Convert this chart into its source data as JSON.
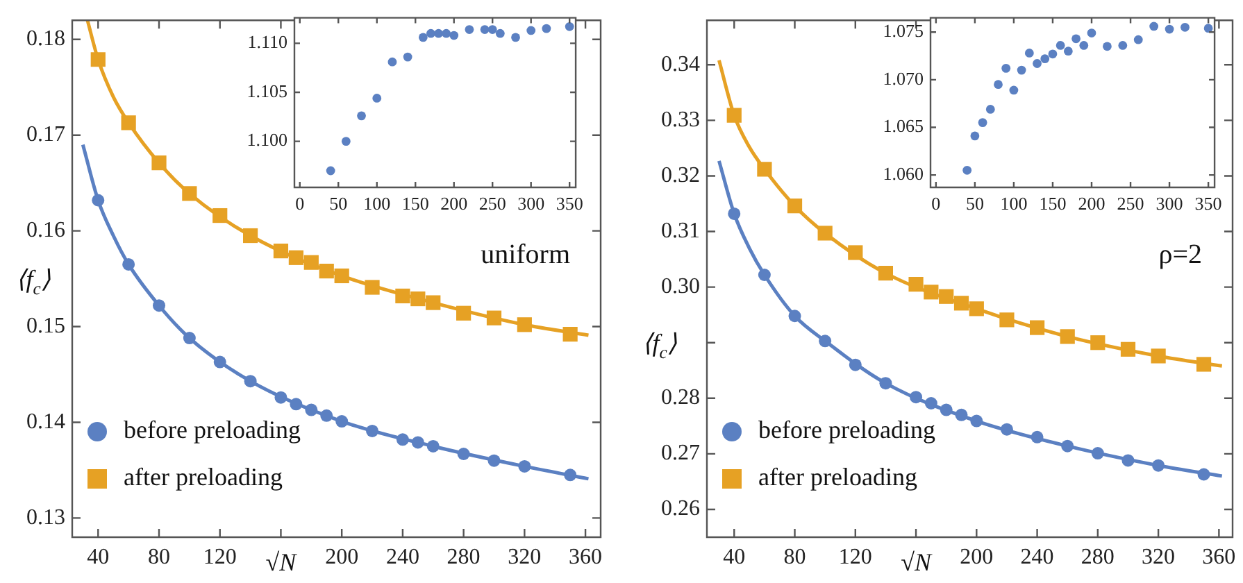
{
  "chart_data": [
    {
      "type": "scatter",
      "xlabel": "√N",
      "ylabel": "⟨f$_{c}$⟩",
      "annotations": [
        "uniform"
      ],
      "legend": "bottom left",
      "xlim": [
        23,
        370
      ],
      "ylim": [
        0.128,
        0.182
      ],
      "xticks": [
        40,
        80,
        120,
        {
          "value": 160,
          "label": null
        },
        200,
        240,
        280,
        320,
        360
      ],
      "yticks": [
        0.13,
        0.14,
        0.15,
        0.16,
        0.17,
        0.18
      ],
      "x": [
        40,
        60,
        80,
        100,
        120,
        140,
        160,
        170,
        180,
        190,
        200,
        220,
        240,
        250,
        260,
        280,
        300,
        320,
        350
      ],
      "series": [
        {
          "type": "line",
          "color": "#5b80c2",
          "x": [
            30,
            40,
            50,
            60,
            80,
            100,
            140,
            200,
            260,
            320,
            362
          ],
          "values": [
            0.169,
            0.1632,
            0.1595,
            0.1565,
            0.1522,
            0.1488,
            0.1443,
            0.1401,
            0.1375,
            0.1354,
            0.1341
          ]
        },
        {
          "type": "line",
          "color": "#e6a124",
          "x": [
            33,
            40,
            50,
            60,
            80,
            100,
            140,
            200,
            260,
            320,
            362
          ],
          "values": [
            0.182,
            0.1779,
            0.174,
            0.1713,
            0.1671,
            0.1639,
            0.1595,
            0.1553,
            0.1525,
            0.1502,
            0.1491
          ]
        },
        {
          "name": "before preloading",
          "type": "scatter",
          "marker": "circle",
          "color": "#5b80c2",
          "values": [
            0.1632,
            0.1565,
            0.1522,
            0.1488,
            0.1463,
            0.1443,
            0.1426,
            0.1419,
            0.1413,
            0.1407,
            0.1401,
            0.1391,
            0.1382,
            0.1379,
            0.1375,
            0.1367,
            0.136,
            0.1354,
            0.1345
          ]
        },
        {
          "name": "after preloading",
          "type": "scatter",
          "marker": "square",
          "color": "#e6a124",
          "values": [
            0.1779,
            0.1713,
            0.1671,
            0.1639,
            0.1616,
            0.1595,
            0.1579,
            0.1572,
            0.1567,
            0.1558,
            0.1553,
            0.1541,
            0.1532,
            0.1529,
            0.1525,
            0.1514,
            0.1509,
            0.1502,
            0.1492
          ]
        }
      ]
    },
    {
      "type": "scatter",
      "marker": "circle",
      "xlim": [
        -7,
        358
      ],
      "ylim": [
        1.0953,
        1.1126
      ],
      "xticks": [
        0,
        50,
        100,
        150,
        200,
        250,
        300,
        350
      ],
      "yticks": [
        {
          "value": 1.1,
          "label": "1.100"
        },
        {
          "value": 1.105,
          "label": "1.105"
        },
        {
          "value": 1.11,
          "label": "1.110"
        }
      ],
      "x": [
        40,
        60,
        80,
        100,
        120,
        140,
        160,
        170,
        180,
        190,
        200,
        220,
        240,
        250,
        260,
        280,
        300,
        320,
        350
      ],
      "series": [
        {
          "color": "#5b80c2",
          "values": [
            1.097,
            1.1,
            1.1026,
            1.1044,
            1.1081,
            1.1086,
            1.1106,
            1.111,
            1.111,
            1.111,
            1.1108,
            1.1114,
            1.1114,
            1.1114,
            1.111,
            1.1106,
            1.1113,
            1.1115,
            1.1117
          ]
        }
      ]
    },
    {
      "type": "scatter",
      "xlabel": "√N",
      "ylabel": "⟨f$_{c}$⟩",
      "annotations": [
        "ρ=2"
      ],
      "legend": "bottom left",
      "xlim": [
        22,
        369
      ],
      "ylim": [
        0.255,
        0.348
      ],
      "xticks": [
        40,
        80,
        120,
        {
          "value": 160,
          "label": null
        },
        200,
        240,
        280,
        320,
        360
      ],
      "yticks": [
        0.26,
        0.27,
        0.28,
        {
          "value": 0.29,
          "label": null
        },
        {
          "value": 0.3,
          "label": "0.30"
        },
        0.31,
        0.32,
        0.33,
        0.34
      ],
      "x": [
        40,
        60,
        80,
        100,
        120,
        140,
        160,
        170,
        180,
        190,
        200,
        220,
        240,
        260,
        280,
        300,
        320,
        350
      ],
      "series": [
        {
          "type": "line",
          "color": "#5b80c2",
          "x": [
            30,
            40,
            50,
            60,
            80,
            100,
            140,
            200,
            260,
            320,
            362
          ],
          "values": [
            0.3227,
            0.3132,
            0.307,
            0.3022,
            0.2948,
            0.2903,
            0.2827,
            0.2759,
            0.2714,
            0.2679,
            0.266
          ]
        },
        {
          "type": "line",
          "color": "#e6a124",
          "x": [
            30,
            40,
            50,
            60,
            80,
            100,
            140,
            200,
            260,
            320,
            362
          ],
          "values": [
            0.3408,
            0.3309,
            0.3252,
            0.3212,
            0.3146,
            0.3097,
            0.3025,
            0.2961,
            0.2911,
            0.2876,
            0.2858
          ]
        },
        {
          "name": "before preloading",
          "type": "scatter",
          "marker": "circle",
          "color": "#5b80c2",
          "values": [
            0.3132,
            0.3022,
            0.2948,
            0.2903,
            0.286,
            0.2827,
            0.2802,
            0.2791,
            0.2779,
            0.277,
            0.2759,
            0.2744,
            0.273,
            0.2714,
            0.2701,
            0.2688,
            0.2679,
            0.2663
          ]
        },
        {
          "name": "after preloading",
          "type": "scatter",
          "marker": "square",
          "color": "#e6a124",
          "values": [
            0.3309,
            0.3212,
            0.3146,
            0.3097,
            0.3062,
            0.3025,
            0.3005,
            0.2991,
            0.2983,
            0.2971,
            0.2961,
            0.2941,
            0.2927,
            0.2911,
            0.29,
            0.2888,
            0.2876,
            0.2861
          ]
        }
      ]
    },
    {
      "type": "scatter",
      "marker": "circle",
      "xlim": [
        -7,
        358
      ],
      "ylim": [
        1.0587,
        1.0765
      ],
      "xticks": [
        0,
        50,
        100,
        150,
        200,
        250,
        300,
        350
      ],
      "yticks": [
        {
          "value": 1.06,
          "label": "1.060"
        },
        {
          "value": 1.065,
          "label": "1.065"
        },
        {
          "value": 1.07,
          "label": "1.070"
        },
        {
          "value": 1.075,
          "label": "1.075"
        }
      ],
      "x": [
        40,
        50,
        60,
        70,
        80,
        90,
        100,
        110,
        120,
        130,
        140,
        150,
        160,
        170,
        180,
        190,
        200,
        220,
        240,
        260,
        280,
        300,
        320,
        350
      ],
      "series": [
        {
          "color": "#5b80c2",
          "values": [
            1.0605,
            1.0641,
            1.0655,
            1.0669,
            1.0695,
            1.0712,
            1.0689,
            1.071,
            1.0728,
            1.0717,
            1.0722,
            1.0727,
            1.0736,
            1.073,
            1.0743,
            1.0736,
            1.0749,
            1.0735,
            1.0736,
            1.0742,
            1.0756,
            1.0753,
            1.0755,
            1.0754
          ]
        }
      ]
    }
  ]
}
